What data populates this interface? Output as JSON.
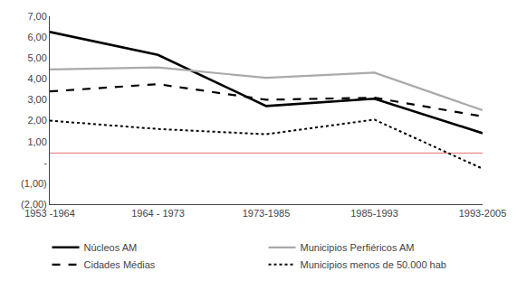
{
  "chart_data": {
    "type": "line",
    "categories": [
      "1953 -1964",
      "1964 - 1973",
      "1973-1985",
      "1985-1993",
      "1993-2005"
    ],
    "series": [
      {
        "name": "Núcleos AM",
        "color": "#000000",
        "line_style": "solid",
        "values": [
          6.25,
          5.15,
          2.7,
          3.05,
          1.4
        ]
      },
      {
        "name": "Municipios Perfiéricos AM",
        "color": "#aaaaaa",
        "line_style": "solid",
        "values": [
          4.45,
          4.55,
          4.05,
          4.3,
          2.5
        ]
      },
      {
        "name": "Cidades Médias",
        "color": "#000000",
        "line_style": "dashed",
        "values": [
          3.4,
          3.75,
          3.0,
          3.1,
          2.2
        ]
      },
      {
        "name": "Municipios menos de 50.000 hab",
        "color": "#000000",
        "line_style": "dotted",
        "values": [
          2.0,
          1.6,
          1.35,
          2.05,
          -0.3
        ]
      }
    ],
    "hline": {
      "value": 0.45,
      "color": "#e07070"
    },
    "ylim": [
      -2.0,
      7.0
    ],
    "yticks": [
      {
        "value": -2.0,
        "label": "(2,00)"
      },
      {
        "value": -1.0,
        "label": "(1,00)"
      },
      {
        "value": 0.0,
        "label": "-"
      },
      {
        "value": 1.0,
        "label": "1,00"
      },
      {
        "value": 2.0,
        "label": "2,00"
      },
      {
        "value": 3.0,
        "label": "3,00"
      },
      {
        "value": 4.0,
        "label": "4,00"
      },
      {
        "value": 5.0,
        "label": "5,00"
      },
      {
        "value": 6.0,
        "label": "6,00"
      },
      {
        "value": 7.0,
        "label": "7,00"
      }
    ],
    "grid": false,
    "legend": "bottom"
  }
}
